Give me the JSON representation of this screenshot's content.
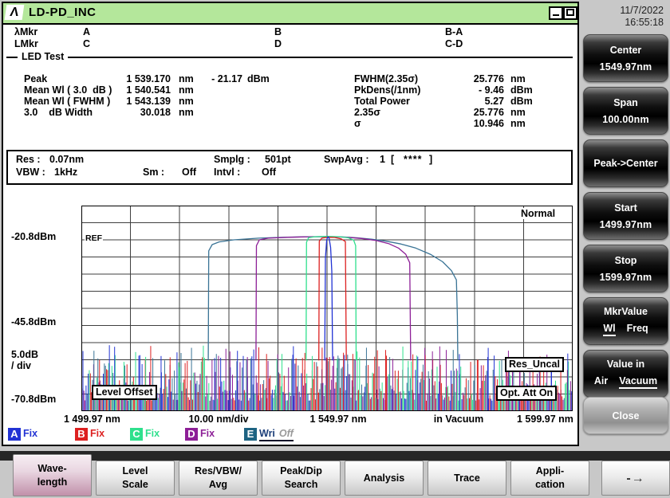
{
  "window": {
    "title": "LD-PD_INC",
    "logo": "Λ"
  },
  "datetime": {
    "date": "11/7/2022",
    "time": "16:55:18"
  },
  "markers": {
    "wl_label": "λMkr",
    "l_label": "LMkr",
    "a": "A",
    "b": "B",
    "ba": "B-A",
    "c": "C",
    "d": "D",
    "cd": "C-D",
    "section": "LED Test"
  },
  "measurements": {
    "left": [
      {
        "label": "Peak",
        "value": "1 539.170",
        "unit": "nm",
        "value2": "- 21.17",
        "unit2": "dBm"
      },
      {
        "label": "Mean Wl ( 3.0  dB )",
        "value": "1 540.541",
        "unit": "nm"
      },
      {
        "label": "Mean Wl ( FWHM )",
        "value": "1 543.139",
        "unit": "nm"
      },
      {
        "label": "3.0    dB Width",
        "value": "30.018",
        "unit": "nm"
      }
    ],
    "right": [
      {
        "label": "FWHM(2.35σ)",
        "value": "25.776",
        "unit": "nm"
      },
      {
        "label": "PkDens(/1nm)",
        "value": "- 9.46",
        "unit": "dBm"
      },
      {
        "label": "Total Power",
        "value": "5.27",
        "unit": "dBm"
      },
      {
        "label": "2.35σ",
        "value": "25.776",
        "unit": "nm"
      },
      {
        "label": "σ",
        "value": "10.946",
        "unit": "nm"
      }
    ]
  },
  "settings": {
    "res_label": "Res :",
    "res_value": "0.07nm",
    "smplg_label": "Smplg :",
    "smplg_value": "501pt",
    "swpavg_label": "SwpAvg :",
    "swpavg_value": "1",
    "swpavg_open": "[",
    "swpavg_stars": "****",
    "swpavg_close": "]",
    "vbw_label": "VBW :",
    "vbw_value": "1kHz",
    "sm_label": "Sm :",
    "sm_value": "Off",
    "intvl_label": "Intvl :",
    "intvl_value": "Off"
  },
  "chart_data": {
    "type": "line",
    "title": "Optical spectrum, LED Test",
    "x_range_nm": [
      1499.97,
      1599.97
    ],
    "x_div_nm": 10.0,
    "y_top_dbm": -10.8,
    "y_bottom_dbm": -70.8,
    "y_ref_dbm": -20.8,
    "y_div_db": 5.0,
    "grid_cols": 10,
    "grid_rows": 12,
    "noise_top_dbm": -54,
    "noise_bottom_dbm": -70.8,
    "ylabel_ticks": [
      "-20.8dBm",
      "-45.8dBm",
      "5.0dB",
      "/ div",
      "-70.8dBm"
    ],
    "xlabel_ticks": [
      "1 499.97 nm",
      "10.00 nm/div",
      "1 549.97 nm",
      "in Vacuum",
      "1 599.97 nm"
    ],
    "annotations": {
      "ref": "REF",
      "mode": "Normal",
      "badge_level_offset": "Level Offset",
      "badge_res_uncal": "Res_Uncal",
      "badge_opt_att": "Opt. Att On"
    },
    "series": [
      {
        "name": "A",
        "color": "#2233d4",
        "points": [
          [
            1549.5,
            -56
          ],
          [
            1549.65,
            -26
          ],
          [
            1549.9,
            -20.8
          ],
          [
            1550.15,
            -19.9
          ],
          [
            1550.4,
            -20.3
          ],
          [
            1550.7,
            -23
          ],
          [
            1550.95,
            -30
          ],
          [
            1551.1,
            -56
          ]
        ]
      },
      {
        "name": "B",
        "color": "#dd2020",
        "points": [
          [
            1548.3,
            -56
          ],
          [
            1548.4,
            -21.2
          ],
          [
            1548.9,
            -20.3
          ],
          [
            1550,
            -20.05
          ],
          [
            1551.5,
            -20.1
          ],
          [
            1552.8,
            -20.5
          ],
          [
            1553.7,
            -21.3
          ],
          [
            1553.9,
            -56
          ]
        ]
      },
      {
        "name": "C",
        "color": "#2fe08d",
        "points": [
          [
            1545.7,
            -56
          ],
          [
            1545.8,
            -21.5
          ],
          [
            1546.2,
            -20.2
          ],
          [
            1547.5,
            -19.9
          ],
          [
            1550,
            -19.8
          ],
          [
            1552.5,
            -19.9
          ],
          [
            1554.3,
            -20.2
          ],
          [
            1555.4,
            -20.9
          ],
          [
            1555.8,
            -22.5
          ],
          [
            1555.9,
            -56
          ]
        ]
      },
      {
        "name": "D",
        "color": "#8d1f97",
        "points": [
          [
            1535.5,
            -56
          ],
          [
            1535.6,
            -22.5
          ],
          [
            1536.2,
            -20.8
          ],
          [
            1538,
            -20.3
          ],
          [
            1542,
            -20.05
          ],
          [
            1547,
            -19.9
          ],
          [
            1551,
            -19.9
          ],
          [
            1554,
            -20.05
          ],
          [
            1557,
            -20.4
          ],
          [
            1560,
            -21.0
          ],
          [
            1562.5,
            -21.9
          ],
          [
            1564.5,
            -23.2
          ],
          [
            1566,
            -25.0
          ],
          [
            1566.8,
            -27.5
          ],
          [
            1567,
            -56
          ]
        ]
      },
      {
        "name": "E",
        "color": "#3a7496",
        "points": [
          [
            1525.8,
            -56
          ],
          [
            1525.9,
            -24
          ],
          [
            1526.6,
            -22.2
          ],
          [
            1528,
            -21.4
          ],
          [
            1531,
            -20.8
          ],
          [
            1536,
            -20.3
          ],
          [
            1541,
            -20.05
          ],
          [
            1546,
            -19.9
          ],
          [
            1550,
            -19.85
          ],
          [
            1553,
            -19.95
          ],
          [
            1556,
            -20.2
          ],
          [
            1559,
            -20.6
          ],
          [
            1562,
            -21.2
          ],
          [
            1565,
            -22.0
          ],
          [
            1568,
            -23.2
          ],
          [
            1571,
            -25.0
          ],
          [
            1573.5,
            -27.2
          ],
          [
            1575.3,
            -29.8
          ],
          [
            1576.3,
            -32.5
          ],
          [
            1576.5,
            -43
          ],
          [
            1576.6,
            -56
          ]
        ]
      }
    ]
  },
  "legend": [
    {
      "letter": "A",
      "state": "Fix",
      "color": "#2233d4"
    },
    {
      "letter": "B",
      "state": "Fix",
      "color": "#dd2020"
    },
    {
      "letter": "C",
      "state": "Fix",
      "color": "#2fe08d"
    },
    {
      "letter": "D",
      "state": "Fix",
      "color": "#8d1f97"
    },
    {
      "letter": "E",
      "state": "Wri",
      "suffix": "Off",
      "color": "#1d6382",
      "text_color": "#1d3f7a"
    }
  ],
  "sidebar": {
    "buttons": [
      {
        "line1": "Center",
        "line2": "1549.97nm"
      },
      {
        "line1": "Span",
        "line2": "100.00nm"
      },
      {
        "line1": "Peak->Center"
      },
      {
        "line1": "Start",
        "line2": "1499.97nm"
      },
      {
        "line1": "Stop",
        "line2": "1599.97nm"
      },
      {
        "line1": "MkrValue",
        "opt1": "Wl",
        "opt2": "Freq"
      },
      {
        "line1": "Value in",
        "opt1": "Air",
        "opt2": "Vacuum"
      },
      {
        "line1": "Close"
      }
    ]
  },
  "bottom_menu": {
    "items": [
      {
        "line1": "Wave-",
        "line2": "length",
        "selected": true
      },
      {
        "line1": "Level",
        "line2": "Scale"
      },
      {
        "line1": "Res/VBW/",
        "line2": "Avg"
      },
      {
        "line1": "Peak/Dip",
        "line2": "Search"
      },
      {
        "line1": "Analysis"
      },
      {
        "line1": "Trace"
      },
      {
        "line1": "Appli-",
        "line2": "cation"
      },
      {
        "arrow": "-→"
      }
    ]
  }
}
